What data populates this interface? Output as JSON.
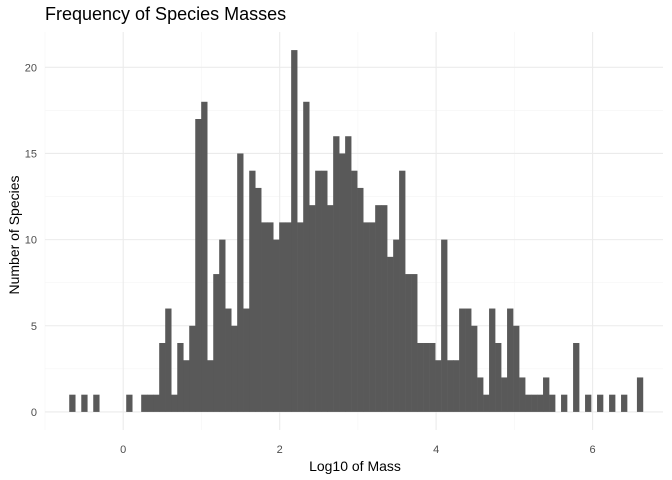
{
  "chart_data": {
    "type": "bar",
    "title": "Frequency of Species Masses",
    "xlabel": "Log10 of Mass",
    "ylabel": "Number of Species",
    "bin_width": 0.0767,
    "bins": [
      {
        "x": -0.652,
        "count": 1
      },
      {
        "x": -0.498,
        "count": 1
      },
      {
        "x": -0.345,
        "count": 1
      },
      {
        "x": 0.0765,
        "count": 1
      },
      {
        "x": 0.268,
        "count": 1
      },
      {
        "x": 0.345,
        "count": 1
      },
      {
        "x": 0.422,
        "count": 1
      },
      {
        "x": 0.498,
        "count": 4
      },
      {
        "x": 0.575,
        "count": 6
      },
      {
        "x": 0.652,
        "count": 1
      },
      {
        "x": 0.729,
        "count": 4
      },
      {
        "x": 0.805,
        "count": 3
      },
      {
        "x": 0.882,
        "count": 5
      },
      {
        "x": 0.959,
        "count": 17
      },
      {
        "x": 1.035,
        "count": 18
      },
      {
        "x": 1.112,
        "count": 3
      },
      {
        "x": 1.189,
        "count": 8
      },
      {
        "x": 1.265,
        "count": 10
      },
      {
        "x": 1.342,
        "count": 6
      },
      {
        "x": 1.419,
        "count": 5
      },
      {
        "x": 1.495,
        "count": 15
      },
      {
        "x": 1.572,
        "count": 6
      },
      {
        "x": 1.649,
        "count": 14
      },
      {
        "x": 1.725,
        "count": 13
      },
      {
        "x": 1.802,
        "count": 11
      },
      {
        "x": 1.879,
        "count": 11
      },
      {
        "x": 1.955,
        "count": 10
      },
      {
        "x": 2.032,
        "count": 11
      },
      {
        "x": 2.109,
        "count": 11
      },
      {
        "x": 2.185,
        "count": 21
      },
      {
        "x": 2.262,
        "count": 11
      },
      {
        "x": 2.339,
        "count": 18
      },
      {
        "x": 2.415,
        "count": 12
      },
      {
        "x": 2.492,
        "count": 14
      },
      {
        "x": 2.569,
        "count": 14
      },
      {
        "x": 2.645,
        "count": 12
      },
      {
        "x": 2.722,
        "count": 16
      },
      {
        "x": 2.799,
        "count": 15
      },
      {
        "x": 2.875,
        "count": 16
      },
      {
        "x": 2.952,
        "count": 14
      },
      {
        "x": 3.029,
        "count": 13
      },
      {
        "x": 3.105,
        "count": 11
      },
      {
        "x": 3.182,
        "count": 11
      },
      {
        "x": 3.259,
        "count": 12
      },
      {
        "x": 3.335,
        "count": 12
      },
      {
        "x": 3.412,
        "count": 9
      },
      {
        "x": 3.489,
        "count": 10
      },
      {
        "x": 3.565,
        "count": 14
      },
      {
        "x": 3.642,
        "count": 8
      },
      {
        "x": 3.719,
        "count": 8
      },
      {
        "x": 3.795,
        "count": 4
      },
      {
        "x": 3.872,
        "count": 4
      },
      {
        "x": 3.949,
        "count": 4
      },
      {
        "x": 4.025,
        "count": 3
      },
      {
        "x": 4.102,
        "count": 10
      },
      {
        "x": 4.179,
        "count": 3
      },
      {
        "x": 4.255,
        "count": 3
      },
      {
        "x": 4.332,
        "count": 6
      },
      {
        "x": 4.409,
        "count": 6
      },
      {
        "x": 4.485,
        "count": 5
      },
      {
        "x": 4.562,
        "count": 2
      },
      {
        "x": 4.639,
        "count": 1
      },
      {
        "x": 4.715,
        "count": 6
      },
      {
        "x": 4.792,
        "count": 4
      },
      {
        "x": 4.869,
        "count": 2
      },
      {
        "x": 4.945,
        "count": 6
      },
      {
        "x": 5.022,
        "count": 5
      },
      {
        "x": 5.099,
        "count": 2
      },
      {
        "x": 5.175,
        "count": 1
      },
      {
        "x": 5.252,
        "count": 1
      },
      {
        "x": 5.329,
        "count": 1
      },
      {
        "x": 5.405,
        "count": 2
      },
      {
        "x": 5.482,
        "count": 1
      },
      {
        "x": 5.635,
        "count": 1
      },
      {
        "x": 5.789,
        "count": 4
      },
      {
        "x": 5.942,
        "count": 1
      },
      {
        "x": 6.095,
        "count": 1
      },
      {
        "x": 6.249,
        "count": 1
      },
      {
        "x": 6.402,
        "count": 1
      },
      {
        "x": 6.605,
        "count": 2
      }
    ],
    "xlim": [
      -1.0,
      6.9
    ],
    "ylim": [
      -1.05,
      22.05
    ],
    "x_ticks": [
      0,
      2,
      4,
      6
    ],
    "y_ticks": [
      0,
      5,
      10,
      15,
      20
    ],
    "grid": true,
    "legend": "none",
    "colors": {
      "bar": "#595959",
      "grid_major": "#ebebeb",
      "grid_minor": "#f5f5f5",
      "background": "#ffffff"
    }
  }
}
